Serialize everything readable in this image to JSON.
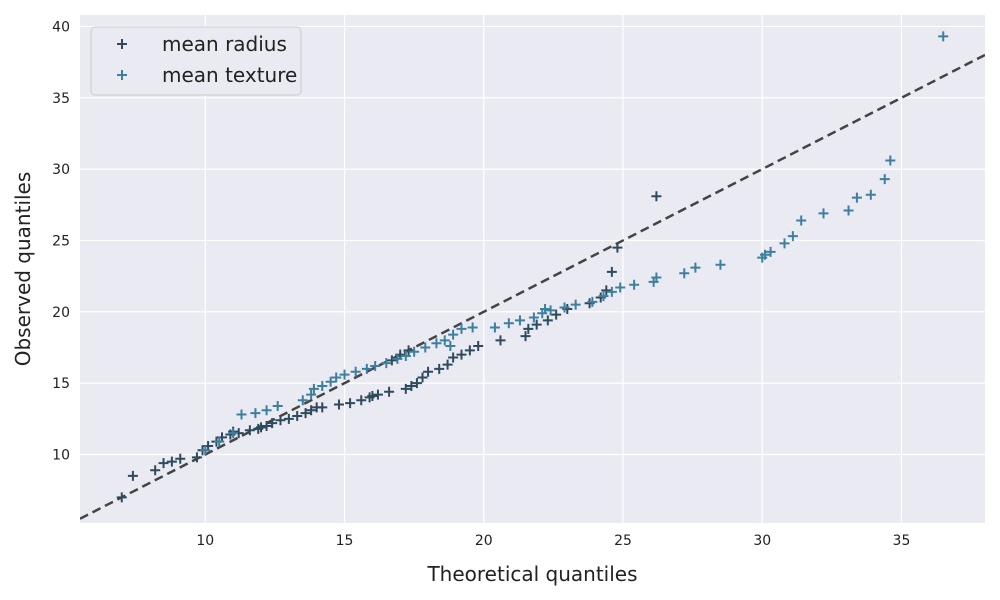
{
  "chart_data": {
    "type": "scatter",
    "title": "",
    "xlabel": "Theoretical quantiles",
    "ylabel": "Observed quantiles",
    "xlim": [
      5.5,
      38
    ],
    "ylim": [
      5.2,
      40.8
    ],
    "xticks": [
      "10",
      "15",
      "20",
      "25",
      "30",
      "35"
    ],
    "yticks": [
      "10",
      "15",
      "20",
      "25",
      "30",
      "35",
      "40"
    ],
    "grid": true,
    "legend_position": "top-left",
    "background_color": "#eaeaf2",
    "reference_line": {
      "style": "dashed",
      "color": "#444444",
      "x": [
        5.5,
        38
      ],
      "y": [
        5.5,
        38
      ]
    },
    "series": [
      {
        "name": "mean radius",
        "marker": "plus",
        "color": "#2e4a5c",
        "points": [
          [
            7.0,
            7.0
          ],
          [
            7.4,
            8.5
          ],
          [
            8.2,
            8.9
          ],
          [
            8.5,
            9.4
          ],
          [
            8.8,
            9.5
          ],
          [
            9.1,
            9.7
          ],
          [
            9.7,
            9.8
          ],
          [
            9.9,
            10.3
          ],
          [
            10.1,
            10.6
          ],
          [
            10.4,
            10.9
          ],
          [
            10.6,
            11.2
          ],
          [
            10.9,
            11.4
          ],
          [
            11.2,
            11.5
          ],
          [
            11.6,
            11.7
          ],
          [
            11.9,
            11.8
          ],
          [
            12.2,
            12.0
          ],
          [
            12.4,
            12.2
          ],
          [
            12.7,
            12.4
          ],
          [
            13.0,
            12.5
          ],
          [
            13.3,
            12.7
          ],
          [
            13.6,
            12.9
          ],
          [
            13.8,
            13.1
          ],
          [
            14.0,
            13.3
          ],
          [
            14.8,
            13.5
          ],
          [
            15.2,
            13.6
          ],
          [
            15.6,
            13.8
          ],
          [
            15.9,
            14.0
          ],
          [
            16.2,
            14.2
          ],
          [
            16.6,
            14.4
          ],
          [
            17.2,
            14.6
          ],
          [
            17.4,
            14.8
          ],
          [
            17.6,
            15.0
          ],
          [
            17.8,
            15.4
          ],
          [
            18.0,
            15.8
          ],
          [
            18.4,
            16.0
          ],
          [
            18.7,
            16.3
          ],
          [
            18.9,
            16.8
          ],
          [
            19.2,
            17.0
          ],
          [
            19.5,
            17.3
          ],
          [
            19.8,
            17.6
          ],
          [
            20.6,
            18.0
          ],
          [
            21.5,
            18.3
          ],
          [
            21.9,
            19.1
          ],
          [
            22.3,
            19.4
          ],
          [
            22.6,
            19.8
          ],
          [
            23.0,
            20.2
          ],
          [
            23.8,
            20.6
          ],
          [
            24.2,
            21.0
          ],
          [
            24.4,
            21.5
          ],
          [
            24.6,
            22.8
          ],
          [
            24.8,
            24.5
          ],
          [
            26.2,
            28.1
          ],
          [
            11.0,
            11.6
          ],
          [
            12.0,
            11.9
          ],
          [
            14.2,
            13.3
          ],
          [
            16.0,
            14.1
          ],
          [
            21.6,
            18.8
          ],
          [
            16.7,
            16.6
          ],
          [
            17.0,
            17.0
          ],
          [
            17.3,
            17.3
          ]
        ]
      },
      {
        "name": "mean texture",
        "marker": "plus",
        "color": "#3f7f9e",
        "points": [
          [
            10.0,
            10.3
          ],
          [
            10.5,
            10.9
          ],
          [
            11.0,
            11.5
          ],
          [
            11.3,
            12.8
          ],
          [
            11.8,
            12.9
          ],
          [
            12.2,
            13.1
          ],
          [
            12.6,
            13.4
          ],
          [
            13.5,
            13.8
          ],
          [
            13.8,
            14.2
          ],
          [
            13.9,
            14.6
          ],
          [
            14.2,
            14.8
          ],
          [
            14.5,
            15.1
          ],
          [
            14.7,
            15.4
          ],
          [
            15.0,
            15.6
          ],
          [
            15.4,
            15.8
          ],
          [
            15.8,
            16.0
          ],
          [
            16.1,
            16.2
          ],
          [
            16.5,
            16.4
          ],
          [
            16.9,
            16.7
          ],
          [
            17.2,
            16.9
          ],
          [
            17.5,
            17.2
          ],
          [
            17.9,
            17.5
          ],
          [
            18.3,
            17.8
          ],
          [
            18.6,
            18.0
          ],
          [
            18.9,
            18.4
          ],
          [
            19.2,
            18.8
          ],
          [
            19.6,
            18.9
          ],
          [
            20.4,
            18.9
          ],
          [
            20.9,
            19.2
          ],
          [
            21.3,
            19.4
          ],
          [
            21.8,
            19.6
          ],
          [
            22.1,
            19.9
          ],
          [
            22.4,
            20.1
          ],
          [
            22.9,
            20.3
          ],
          [
            23.3,
            20.5
          ],
          [
            23.9,
            20.7
          ],
          [
            24.3,
            21.1
          ],
          [
            24.6,
            21.4
          ],
          [
            24.9,
            21.7
          ],
          [
            25.4,
            21.9
          ],
          [
            26.1,
            22.1
          ],
          [
            26.2,
            22.4
          ],
          [
            27.2,
            22.7
          ],
          [
            27.6,
            23.1
          ],
          [
            28.5,
            23.3
          ],
          [
            30.0,
            23.8
          ],
          [
            30.3,
            24.2
          ],
          [
            30.8,
            24.8
          ],
          [
            31.1,
            25.3
          ],
          [
            31.4,
            26.4
          ],
          [
            32.2,
            26.9
          ],
          [
            33.1,
            27.1
          ],
          [
            33.4,
            28.0
          ],
          [
            33.9,
            28.2
          ],
          [
            34.4,
            29.3
          ],
          [
            34.6,
            30.6
          ],
          [
            36.5,
            39.3
          ],
          [
            18.8,
            17.6
          ],
          [
            22.2,
            20.2
          ],
          [
            30.1,
            24.0
          ]
        ]
      }
    ]
  }
}
